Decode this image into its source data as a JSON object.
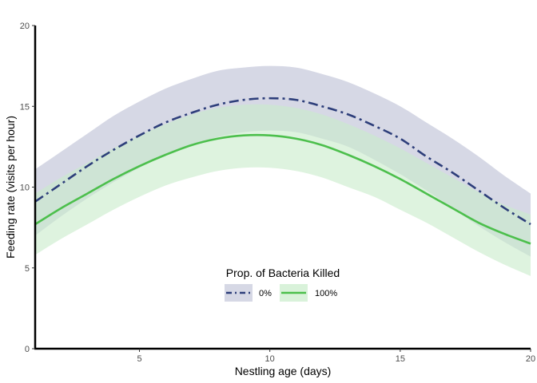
{
  "chart_data": {
    "type": "line",
    "title": "",
    "xlabel": "Nestling age (days)",
    "ylabel": "Feeding rate (visits per hour)",
    "xlim": [
      1,
      20
    ],
    "ylim": [
      0,
      20
    ],
    "x_ticks": [
      5,
      10,
      15,
      20
    ],
    "y_ticks": [
      0,
      5,
      10,
      15,
      20
    ],
    "x_tick_labels": [
      "5",
      "10",
      "15",
      "20"
    ],
    "y_tick_labels": [
      "0",
      "5",
      "10",
      "15",
      "20"
    ],
    "grid": false,
    "x": [
      1,
      2,
      3,
      4,
      5,
      6,
      7,
      8,
      9,
      10,
      11,
      12,
      13,
      14,
      15,
      16,
      17,
      18,
      19,
      20
    ],
    "series": [
      {
        "name": "0%",
        "line_style": "dashdot",
        "color": "#2d3e7a",
        "ribbon_color": "#d6d8e5",
        "values": [
          9.1,
          10.2,
          11.3,
          12.3,
          13.2,
          14.0,
          14.6,
          15.1,
          15.4,
          15.5,
          15.4,
          15.0,
          14.5,
          13.8,
          13.0,
          11.9,
          10.9,
          9.8,
          8.7,
          7.7
        ],
        "lower": [
          7.0,
          8.2,
          9.3,
          10.3,
          11.2,
          12.0,
          12.6,
          13.1,
          13.4,
          13.5,
          13.4,
          13.0,
          12.5,
          11.7,
          10.8,
          9.8,
          8.7,
          7.6,
          6.6,
          5.7
        ],
        "upper": [
          11.1,
          12.2,
          13.3,
          14.4,
          15.3,
          16.1,
          16.7,
          17.2,
          17.4,
          17.5,
          17.4,
          17.0,
          16.5,
          15.8,
          15.0,
          14.0,
          13.0,
          11.9,
          10.7,
          9.6
        ]
      },
      {
        "name": "100%",
        "line_style": "solid",
        "color": "#4cbf4c",
        "ribbon_color": "#c9eccb",
        "values": [
          7.7,
          8.7,
          9.6,
          10.5,
          11.3,
          12.0,
          12.6,
          13.0,
          13.2,
          13.2,
          13.0,
          12.6,
          12.0,
          11.3,
          10.5,
          9.6,
          8.7,
          7.8,
          7.1,
          6.5
        ],
        "lower": [
          5.8,
          6.8,
          7.7,
          8.6,
          9.4,
          10.1,
          10.6,
          11.0,
          11.2,
          11.2,
          11.0,
          10.6,
          10.0,
          9.4,
          8.6,
          7.8,
          6.9,
          6.0,
          5.2,
          4.5
        ],
        "upper": [
          9.6,
          10.6,
          11.5,
          12.4,
          13.2,
          13.9,
          14.5,
          14.9,
          15.1,
          15.1,
          14.9,
          14.5,
          13.9,
          13.2,
          12.4,
          11.5,
          10.6,
          9.7,
          8.9,
          8.3
        ]
      }
    ],
    "legend": {
      "title": "Prop. of Bacteria Killed",
      "placement": "bottom-center",
      "entries": [
        "0%",
        "100%"
      ]
    }
  }
}
